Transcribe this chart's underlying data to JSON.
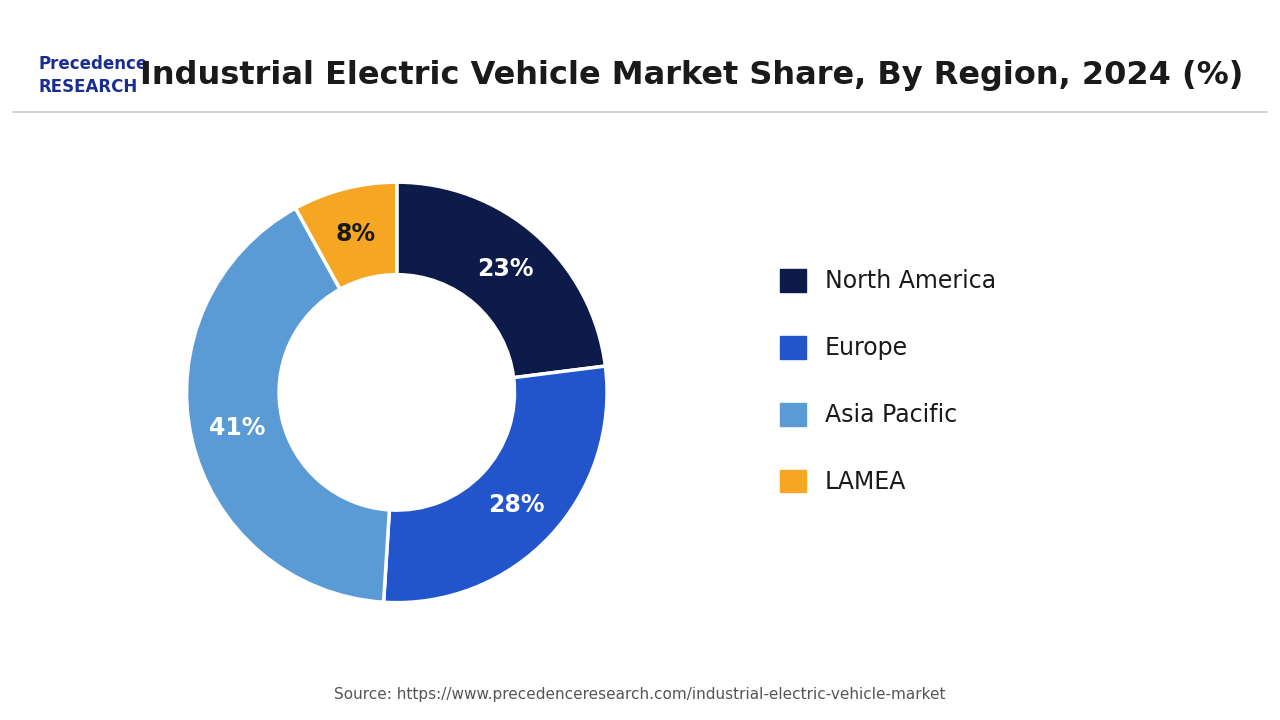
{
  "title": "Industrial Electric Vehicle Market Share, By Region, 2024 (%)",
  "segments": [
    {
      "label": "North America",
      "value": 23,
      "color": "#0d1b4b",
      "text_color": "#ffffff"
    },
    {
      "label": "Europe",
      "value": 28,
      "color": "#2255cc",
      "text_color": "#ffffff"
    },
    {
      "label": "Asia Pacific",
      "value": 41,
      "color": "#5b9bd5",
      "text_color": "#ffffff"
    },
    {
      "label": "LAMEA",
      "value": 8,
      "color": "#f5a623",
      "text_color": "#1a1a1a"
    }
  ],
  "source_text": "Source: https://www.precedenceresearch.com/industrial-electric-vehicle-market",
  "background_color": "#ffffff",
  "title_fontsize": 23,
  "label_fontsize": 17,
  "legend_fontsize": 17,
  "source_fontsize": 11,
  "donut_width": 0.44,
  "startangle": 90
}
